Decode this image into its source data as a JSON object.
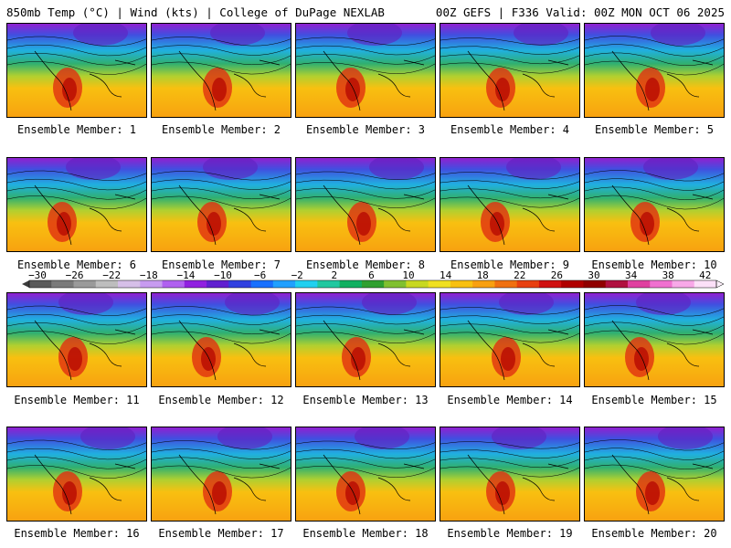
{
  "header": {
    "left": "850mb Temp (°C) | Wind (kts) | College of DuPage NEXLAB",
    "right": "00Z GEFS | F336 Valid: 00Z MON OCT 06 2025"
  },
  "caption_prefix": "Ensemble Member: ",
  "members": [
    1,
    2,
    3,
    4,
    5,
    6,
    7,
    8,
    9,
    10,
    11,
    12,
    13,
    14,
    15,
    16,
    17,
    18,
    19,
    20
  ],
  "colorbar": {
    "ticks": [
      "-30",
      "-26",
      "-22",
      "-18",
      "-14",
      "-10",
      "-6",
      "-2",
      "2",
      "6",
      "10",
      "14",
      "18",
      "22",
      "26",
      "30",
      "34",
      "38",
      "42"
    ],
    "colors": [
      "#5a5a5a",
      "#7a7a7a",
      "#9a9a9a",
      "#bdbdbd",
      "#d6bfe8",
      "#c79bf0",
      "#b060f0",
      "#9020e0",
      "#6020d0",
      "#3040e0",
      "#1870ff",
      "#20a0ff",
      "#20d0f0",
      "#20c8a0",
      "#10b060",
      "#30a030",
      "#80c030",
      "#c8d820",
      "#f0e020",
      "#f8c010",
      "#f8a010",
      "#f07010",
      "#e84010",
      "#d01010",
      "#b00000",
      "#900000",
      "#b01040",
      "#e040a0",
      "#f070d0",
      "#f8a8e8",
      "#fce0f8"
    ]
  }
}
